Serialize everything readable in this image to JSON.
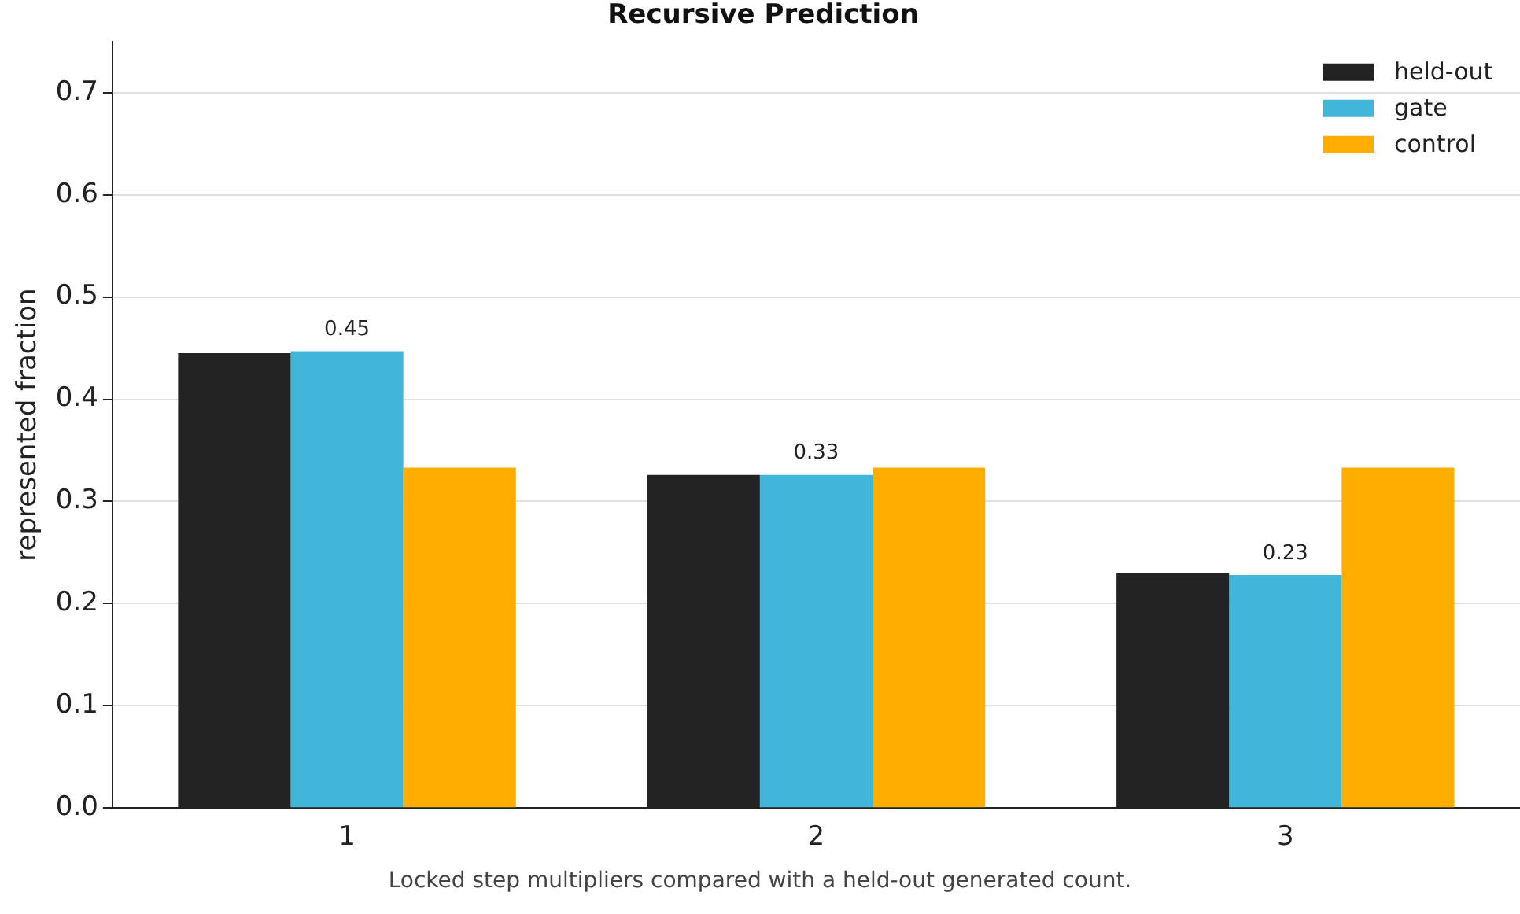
{
  "chart_data": {
    "type": "bar",
    "title": "Recursive Prediction",
    "ylabel": "represented fraction",
    "categories": [
      "1",
      "2",
      "3"
    ],
    "series": [
      {
        "name": "held-out",
        "color": "#232323",
        "values": [
          0.445,
          0.326,
          0.23
        ]
      },
      {
        "name": "gate",
        "color": "#41b6d9",
        "values": [
          0.447,
          0.326,
          0.228
        ],
        "value_labels": [
          "0.45",
          "0.33",
          "0.23"
        ]
      },
      {
        "name": "control",
        "color": "#ffae00",
        "values": [
          0.333,
          0.333,
          0.333
        ]
      }
    ],
    "ylim": [
      0,
      0.75
    ],
    "yticks": [
      {
        "value": 0,
        "label": "0.0"
      },
      0.1,
      0.2,
      0.3,
      0.4,
      0.5,
      0.6,
      0.7
    ],
    "grid": "y",
    "legend": "top right",
    "annotations": [
      "Locked step multipliers compared with a held-out generated count."
    ]
  }
}
